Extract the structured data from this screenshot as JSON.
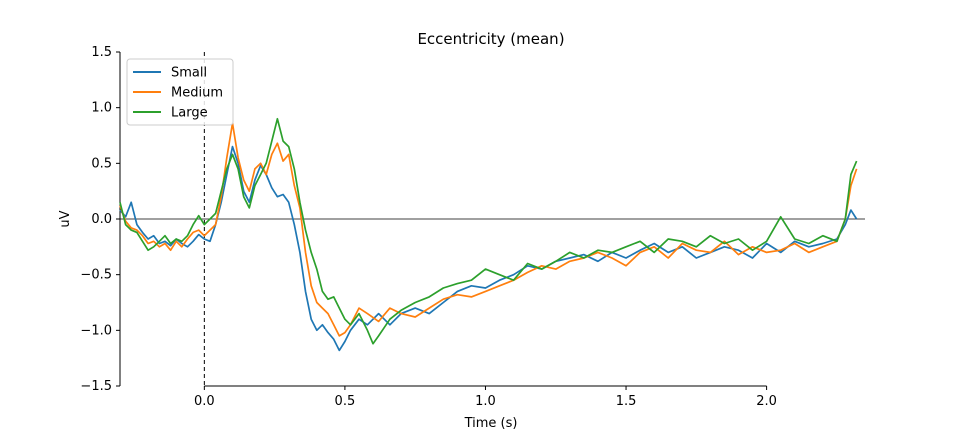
{
  "chart_data": {
    "type": "line",
    "title": "Eccentricity (mean)",
    "xlabel": "Time (s)",
    "ylabel": "uV",
    "xlim": [
      -0.3,
      2.35
    ],
    "ylim": [
      -1.5,
      1.5
    ],
    "xticks": [
      0.0,
      0.5,
      1.0,
      1.5,
      2.0
    ],
    "xtick_labels": [
      "0.0",
      "0.5",
      "1.0",
      "1.5",
      "2.0"
    ],
    "yticks": [
      -1.5,
      -1.0,
      -0.5,
      0.0,
      0.5,
      1.0,
      1.5
    ],
    "ytick_labels": [
      "−1.5",
      "−1.0",
      "−0.5",
      "0.0",
      "0.5",
      "1.0",
      "1.5"
    ],
    "grid": false,
    "legend_position": "top-left",
    "annotations": {
      "hline_y": 0.0,
      "vline_x": 0.0
    },
    "series": [
      {
        "name": "Small",
        "color": "#1f77b4",
        "points": [
          [
            -0.3,
            0.08
          ],
          [
            -0.28,
            0.02
          ],
          [
            -0.26,
            0.15
          ],
          [
            -0.24,
            -0.05
          ],
          [
            -0.22,
            -0.12
          ],
          [
            -0.2,
            -0.18
          ],
          [
            -0.18,
            -0.15
          ],
          [
            -0.16,
            -0.22
          ],
          [
            -0.14,
            -0.2
          ],
          [
            -0.12,
            -0.24
          ],
          [
            -0.1,
            -0.18
          ],
          [
            -0.08,
            -0.22
          ],
          [
            -0.06,
            -0.25
          ],
          [
            -0.04,
            -0.2
          ],
          [
            -0.02,
            -0.14
          ],
          [
            0.0,
            -0.18
          ],
          [
            0.02,
            -0.2
          ],
          [
            0.04,
            -0.05
          ],
          [
            0.06,
            0.15
          ],
          [
            0.08,
            0.4
          ],
          [
            0.1,
            0.65
          ],
          [
            0.12,
            0.5
          ],
          [
            0.14,
            0.25
          ],
          [
            0.16,
            0.15
          ],
          [
            0.18,
            0.35
          ],
          [
            0.2,
            0.48
          ],
          [
            0.22,
            0.4
          ],
          [
            0.24,
            0.28
          ],
          [
            0.26,
            0.2
          ],
          [
            0.28,
            0.22
          ],
          [
            0.3,
            0.15
          ],
          [
            0.32,
            -0.05
          ],
          [
            0.34,
            -0.3
          ],
          [
            0.36,
            -0.65
          ],
          [
            0.38,
            -0.9
          ],
          [
            0.4,
            -1.0
          ],
          [
            0.42,
            -0.95
          ],
          [
            0.44,
            -1.02
          ],
          [
            0.46,
            -1.08
          ],
          [
            0.48,
            -1.18
          ],
          [
            0.5,
            -1.1
          ],
          [
            0.52,
            -1.0
          ],
          [
            0.55,
            -0.9
          ],
          [
            0.58,
            -0.95
          ],
          [
            0.62,
            -0.85
          ],
          [
            0.66,
            -0.95
          ],
          [
            0.7,
            -0.85
          ],
          [
            0.75,
            -0.8
          ],
          [
            0.8,
            -0.85
          ],
          [
            0.85,
            -0.75
          ],
          [
            0.9,
            -0.65
          ],
          [
            0.95,
            -0.6
          ],
          [
            1.0,
            -0.62
          ],
          [
            1.05,
            -0.55
          ],
          [
            1.1,
            -0.5
          ],
          [
            1.15,
            -0.42
          ],
          [
            1.2,
            -0.45
          ],
          [
            1.25,
            -0.38
          ],
          [
            1.3,
            -0.35
          ],
          [
            1.35,
            -0.32
          ],
          [
            1.4,
            -0.38
          ],
          [
            1.45,
            -0.3
          ],
          [
            1.5,
            -0.35
          ],
          [
            1.55,
            -0.28
          ],
          [
            1.6,
            -0.22
          ],
          [
            1.65,
            -0.3
          ],
          [
            1.7,
            -0.25
          ],
          [
            1.75,
            -0.35
          ],
          [
            1.8,
            -0.3
          ],
          [
            1.85,
            -0.25
          ],
          [
            1.9,
            -0.28
          ],
          [
            1.95,
            -0.35
          ],
          [
            2.0,
            -0.22
          ],
          [
            2.05,
            -0.3
          ],
          [
            2.1,
            -0.2
          ],
          [
            2.15,
            -0.25
          ],
          [
            2.2,
            -0.22
          ],
          [
            2.25,
            -0.18
          ],
          [
            2.28,
            -0.05
          ],
          [
            2.3,
            0.08
          ],
          [
            2.32,
            0.0
          ]
        ]
      },
      {
        "name": "Medium",
        "color": "#ff7f0e",
        "points": [
          [
            -0.3,
            0.12
          ],
          [
            -0.28,
            -0.02
          ],
          [
            -0.26,
            -0.08
          ],
          [
            -0.24,
            -0.1
          ],
          [
            -0.22,
            -0.15
          ],
          [
            -0.2,
            -0.22
          ],
          [
            -0.18,
            -0.2
          ],
          [
            -0.16,
            -0.25
          ],
          [
            -0.14,
            -0.22
          ],
          [
            -0.12,
            -0.28
          ],
          [
            -0.1,
            -0.2
          ],
          [
            -0.08,
            -0.25
          ],
          [
            -0.06,
            -0.18
          ],
          [
            -0.04,
            -0.12
          ],
          [
            -0.02,
            -0.1
          ],
          [
            0.0,
            -0.15
          ],
          [
            0.02,
            -0.1
          ],
          [
            0.04,
            -0.05
          ],
          [
            0.06,
            0.2
          ],
          [
            0.08,
            0.55
          ],
          [
            0.1,
            0.86
          ],
          [
            0.12,
            0.55
          ],
          [
            0.14,
            0.35
          ],
          [
            0.16,
            0.25
          ],
          [
            0.18,
            0.45
          ],
          [
            0.2,
            0.5
          ],
          [
            0.22,
            0.4
          ],
          [
            0.24,
            0.58
          ],
          [
            0.26,
            0.68
          ],
          [
            0.28,
            0.52
          ],
          [
            0.3,
            0.58
          ],
          [
            0.32,
            0.3
          ],
          [
            0.34,
            0.1
          ],
          [
            0.36,
            -0.3
          ],
          [
            0.38,
            -0.6
          ],
          [
            0.4,
            -0.75
          ],
          [
            0.42,
            -0.8
          ],
          [
            0.44,
            -0.85
          ],
          [
            0.46,
            -0.95
          ],
          [
            0.48,
            -1.05
          ],
          [
            0.5,
            -1.02
          ],
          [
            0.52,
            -0.95
          ],
          [
            0.55,
            -0.8
          ],
          [
            0.58,
            -0.85
          ],
          [
            0.62,
            -0.92
          ],
          [
            0.66,
            -0.8
          ],
          [
            0.7,
            -0.85
          ],
          [
            0.75,
            -0.88
          ],
          [
            0.8,
            -0.8
          ],
          [
            0.85,
            -0.72
          ],
          [
            0.9,
            -0.68
          ],
          [
            0.95,
            -0.7
          ],
          [
            1.0,
            -0.65
          ],
          [
            1.05,
            -0.6
          ],
          [
            1.1,
            -0.55
          ],
          [
            1.15,
            -0.48
          ],
          [
            1.2,
            -0.42
          ],
          [
            1.25,
            -0.45
          ],
          [
            1.3,
            -0.38
          ],
          [
            1.35,
            -0.35
          ],
          [
            1.4,
            -0.3
          ],
          [
            1.45,
            -0.35
          ],
          [
            1.5,
            -0.42
          ],
          [
            1.55,
            -0.3
          ],
          [
            1.6,
            -0.25
          ],
          [
            1.65,
            -0.35
          ],
          [
            1.7,
            -0.22
          ],
          [
            1.75,
            -0.28
          ],
          [
            1.8,
            -0.3
          ],
          [
            1.85,
            -0.2
          ],
          [
            1.9,
            -0.32
          ],
          [
            1.95,
            -0.25
          ],
          [
            2.0,
            -0.3
          ],
          [
            2.05,
            -0.28
          ],
          [
            2.1,
            -0.22
          ],
          [
            2.15,
            -0.3
          ],
          [
            2.2,
            -0.25
          ],
          [
            2.25,
            -0.2
          ],
          [
            2.28,
            0.0
          ],
          [
            2.3,
            0.3
          ],
          [
            2.32,
            0.45
          ]
        ]
      },
      {
        "name": "Large",
        "color": "#2ca02c",
        "points": [
          [
            -0.3,
            0.15
          ],
          [
            -0.28,
            -0.05
          ],
          [
            -0.26,
            -0.1
          ],
          [
            -0.24,
            -0.12
          ],
          [
            -0.22,
            -0.2
          ],
          [
            -0.2,
            -0.28
          ],
          [
            -0.18,
            -0.25
          ],
          [
            -0.16,
            -0.2
          ],
          [
            -0.14,
            -0.15
          ],
          [
            -0.12,
            -0.22
          ],
          [
            -0.1,
            -0.18
          ],
          [
            -0.08,
            -0.2
          ],
          [
            -0.06,
            -0.15
          ],
          [
            -0.04,
            -0.05
          ],
          [
            -0.02,
            0.03
          ],
          [
            0.0,
            -0.05
          ],
          [
            0.02,
            0.0
          ],
          [
            0.04,
            0.05
          ],
          [
            0.06,
            0.25
          ],
          [
            0.08,
            0.45
          ],
          [
            0.1,
            0.58
          ],
          [
            0.12,
            0.45
          ],
          [
            0.14,
            0.2
          ],
          [
            0.16,
            0.1
          ],
          [
            0.18,
            0.3
          ],
          [
            0.2,
            0.4
          ],
          [
            0.22,
            0.5
          ],
          [
            0.24,
            0.7
          ],
          [
            0.26,
            0.9
          ],
          [
            0.28,
            0.7
          ],
          [
            0.3,
            0.65
          ],
          [
            0.32,
            0.45
          ],
          [
            0.34,
            0.15
          ],
          [
            0.36,
            -0.1
          ],
          [
            0.38,
            -0.3
          ],
          [
            0.4,
            -0.45
          ],
          [
            0.42,
            -0.65
          ],
          [
            0.44,
            -0.72
          ],
          [
            0.46,
            -0.7
          ],
          [
            0.48,
            -0.8
          ],
          [
            0.5,
            -0.9
          ],
          [
            0.52,
            -0.95
          ],
          [
            0.55,
            -0.85
          ],
          [
            0.58,
            -1.0
          ],
          [
            0.6,
            -1.12
          ],
          [
            0.62,
            -1.05
          ],
          [
            0.66,
            -0.9
          ],
          [
            0.7,
            -0.82
          ],
          [
            0.75,
            -0.75
          ],
          [
            0.8,
            -0.7
          ],
          [
            0.85,
            -0.62
          ],
          [
            0.9,
            -0.58
          ],
          [
            0.95,
            -0.55
          ],
          [
            1.0,
            -0.45
          ],
          [
            1.05,
            -0.5
          ],
          [
            1.1,
            -0.55
          ],
          [
            1.15,
            -0.4
          ],
          [
            1.2,
            -0.45
          ],
          [
            1.25,
            -0.38
          ],
          [
            1.3,
            -0.3
          ],
          [
            1.35,
            -0.35
          ],
          [
            1.4,
            -0.28
          ],
          [
            1.45,
            -0.3
          ],
          [
            1.5,
            -0.25
          ],
          [
            1.55,
            -0.2
          ],
          [
            1.6,
            -0.3
          ],
          [
            1.65,
            -0.18
          ],
          [
            1.7,
            -0.2
          ],
          [
            1.75,
            -0.25
          ],
          [
            1.8,
            -0.15
          ],
          [
            1.85,
            -0.22
          ],
          [
            1.9,
            -0.18
          ],
          [
            1.95,
            -0.28
          ],
          [
            2.0,
            -0.2
          ],
          [
            2.05,
            0.02
          ],
          [
            2.1,
            -0.18
          ],
          [
            2.15,
            -0.22
          ],
          [
            2.2,
            -0.15
          ],
          [
            2.25,
            -0.2
          ],
          [
            2.28,
            0.0
          ],
          [
            2.3,
            0.4
          ],
          [
            2.32,
            0.52
          ]
        ]
      }
    ]
  }
}
